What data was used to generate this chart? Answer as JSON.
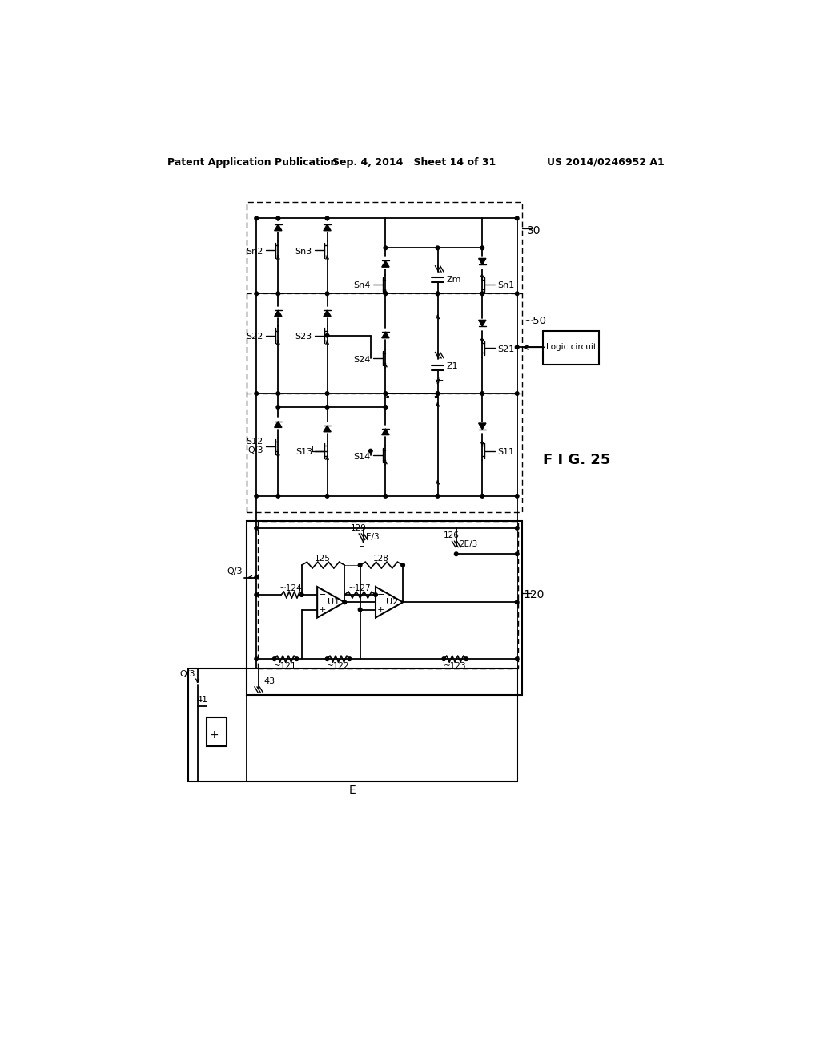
{
  "header_left": "Patent Application Publication",
  "header_mid": "Sep. 4, 2014   Sheet 14 of 31",
  "header_right": "US 2014/0246952 A1",
  "fig_label": "F I G. 25",
  "bg_color": "#ffffff"
}
